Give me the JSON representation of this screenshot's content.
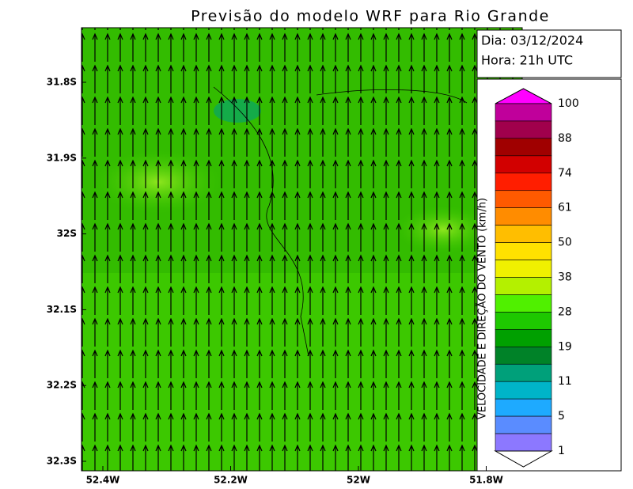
{
  "title": "Previsão do modelo WRF para Rio Grande",
  "info": {
    "date": "Dia: 03/12/2024",
    "hour": "Hora: 21h UTC"
  },
  "y_labels": [
    "31.8S",
    "31.9S",
    "32S",
    "32.1S",
    "32.2S",
    "32.3S"
  ],
  "x_labels": [
    "52.4W",
    "52.2W",
    "52W",
    "51.8W"
  ],
  "colorbar": {
    "label": "VELOCIDADE E DIREÇÃO DO VENTO (km/h)",
    "ticks": [
      100,
      88,
      74,
      61,
      50,
      38,
      28,
      19,
      11,
      5,
      1
    ],
    "top_color": "#ff00ff",
    "colors": [
      "#c0009b",
      "#a0004c",
      "#a00000",
      "#d20000",
      "#ff1e00",
      "#ff5a00",
      "#ff8c00",
      "#ffbe00",
      "#ffe100",
      "#f0f000",
      "#b4f000",
      "#50f000",
      "#1ec800",
      "#00a000",
      "#008228",
      "#00a07a",
      "#00b4c8",
      "#1eaaff",
      "#5a8cff",
      "#8c78ff"
    ]
  }
}
